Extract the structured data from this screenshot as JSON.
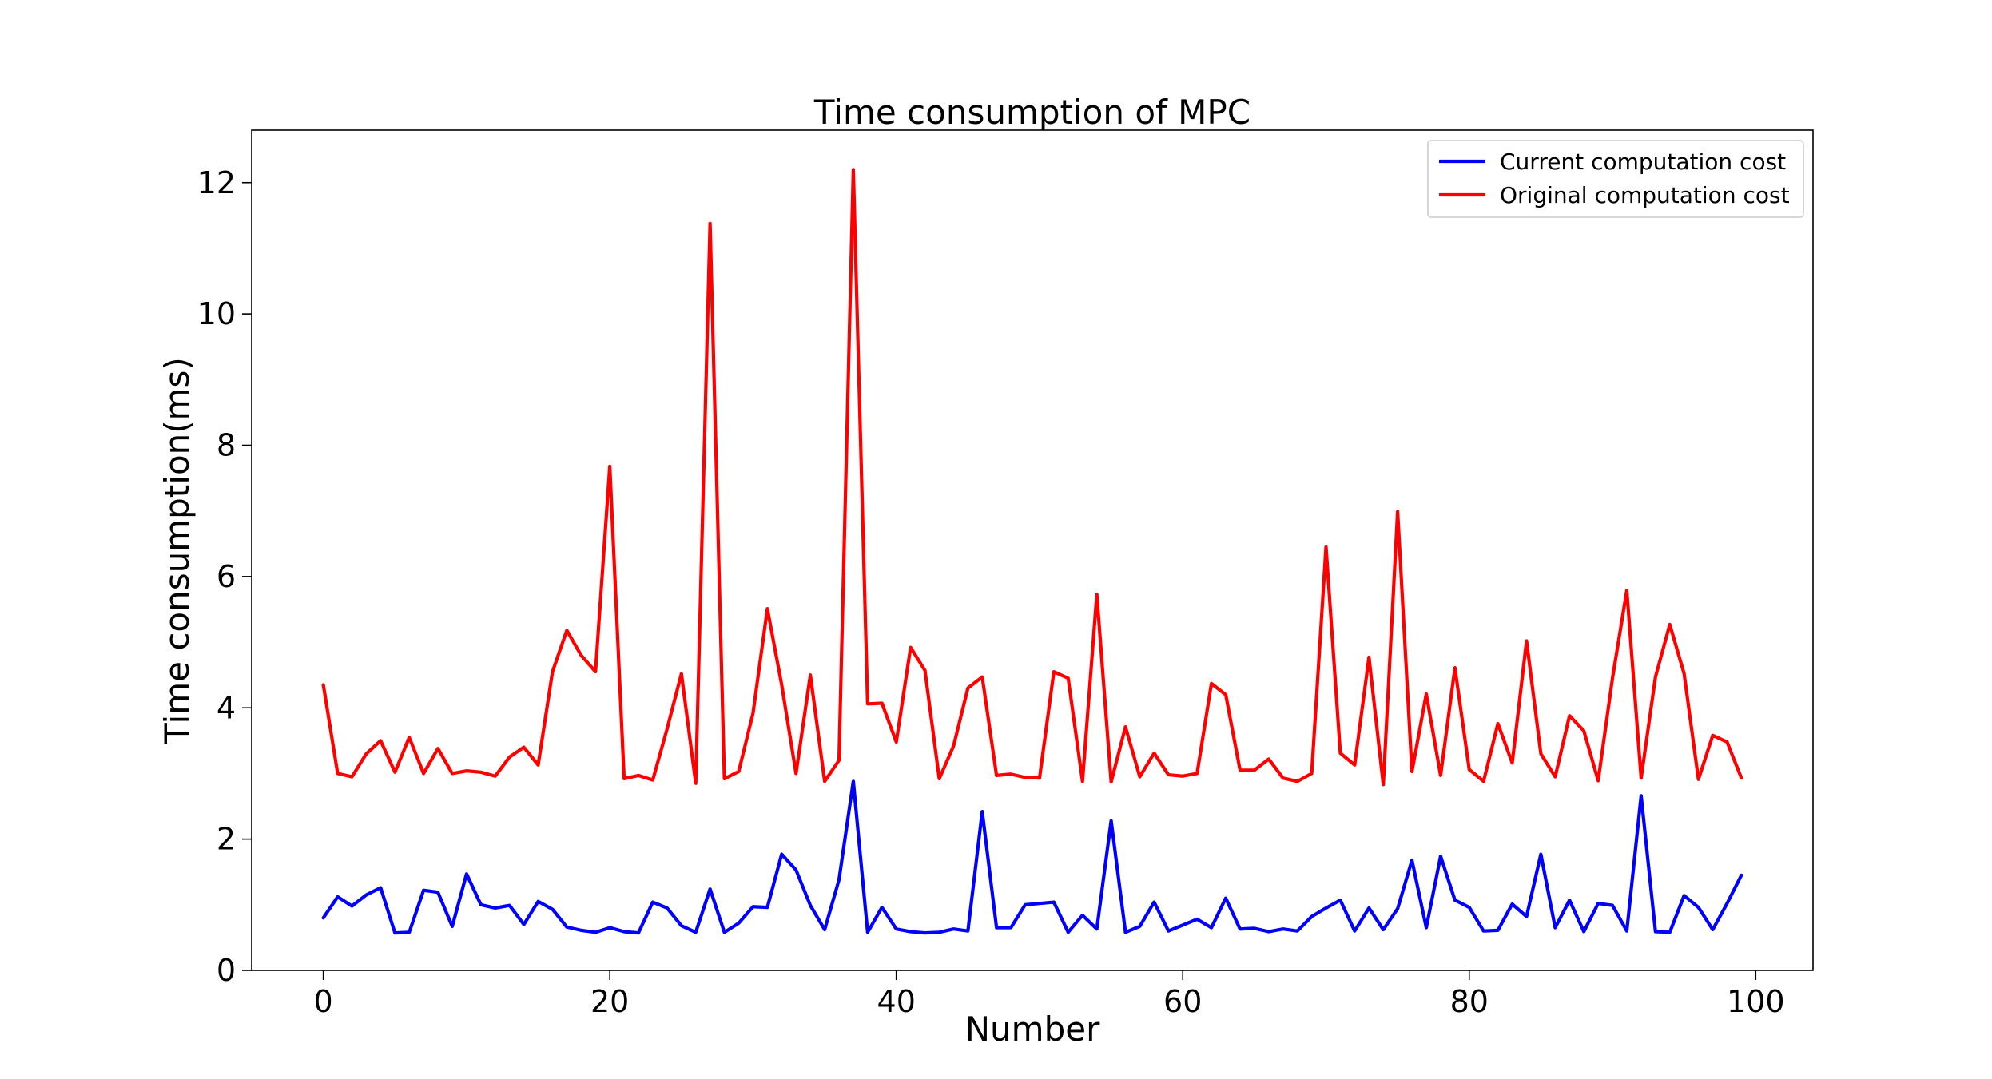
{
  "chart_data": {
    "type": "line",
    "title": "Time consumption of MPC",
    "xlabel": "Number",
    "ylabel": "Time consumption(ms)",
    "xlim": [
      -5,
      104
    ],
    "ylim": [
      0,
      12.8
    ],
    "xticks": [
      0,
      20,
      40,
      60,
      80,
      100
    ],
    "yticks": [
      0,
      2,
      4,
      6,
      8,
      10,
      12
    ],
    "grid": false,
    "legend_position": "top-right",
    "series": [
      {
        "name": "Current computation cost",
        "color": "#0000ff",
        "values": [
          0.8,
          1.12,
          0.98,
          1.15,
          1.26,
          0.57,
          0.58,
          1.22,
          1.19,
          0.67,
          1.47,
          1.0,
          0.95,
          0.99,
          0.7,
          1.05,
          0.93,
          0.66,
          0.61,
          0.58,
          0.65,
          0.59,
          0.57,
          1.04,
          0.95,
          0.68,
          0.58,
          1.24,
          0.58,
          0.72,
          0.97,
          0.96,
          1.77,
          1.53,
          0.99,
          0.62,
          1.38,
          2.88,
          0.58,
          0.96,
          0.63,
          0.59,
          0.57,
          0.58,
          0.63,
          0.6,
          2.42,
          0.65,
          0.65,
          1.0,
          1.02,
          1.04,
          0.58,
          0.84,
          0.63,
          2.28,
          0.58,
          0.67,
          1.04,
          0.6,
          0.69,
          0.78,
          0.65,
          1.1,
          0.63,
          0.64,
          0.59,
          0.63,
          0.6,
          0.82,
          0.95,
          1.07,
          0.6,
          0.95,
          0.62,
          0.94,
          1.68,
          0.65,
          1.74,
          1.07,
          0.96,
          0.6,
          0.61,
          1.01,
          0.82,
          1.77,
          0.65,
          1.07,
          0.59,
          1.02,
          0.99,
          0.6,
          2.66,
          0.59,
          0.58,
          1.14,
          0.96,
          0.62,
          1.02,
          1.45
        ]
      },
      {
        "name": "Original computation cost",
        "color": "#ff0000",
        "values": [
          4.35,
          3.0,
          2.95,
          3.3,
          3.5,
          3.02,
          3.55,
          3.0,
          3.38,
          3.0,
          3.04,
          3.02,
          2.96,
          3.25,
          3.4,
          3.13,
          4.55,
          5.18,
          4.8,
          4.55,
          7.68,
          2.92,
          2.97,
          2.9,
          3.68,
          4.52,
          2.85,
          11.38,
          2.92,
          3.03,
          3.92,
          5.51,
          4.35,
          3.0,
          4.5,
          2.88,
          3.2,
          12.2,
          4.06,
          4.07,
          3.48,
          4.92,
          4.57,
          2.92,
          3.42,
          4.3,
          4.47,
          2.97,
          2.99,
          2.94,
          2.93,
          4.55,
          4.45,
          2.88,
          5.73,
          2.87,
          3.71,
          2.95,
          3.31,
          2.98,
          2.96,
          3.0,
          4.37,
          4.2,
          3.05,
          3.05,
          3.22,
          2.93,
          2.88,
          3.0,
          6.45,
          3.31,
          3.13,
          4.77,
          2.83,
          6.99,
          3.03,
          4.21,
          2.97,
          4.61,
          3.06,
          2.88,
          3.76,
          3.16,
          5.02,
          3.3,
          2.95,
          3.88,
          3.65,
          2.89,
          4.45,
          5.79,
          2.93,
          4.47,
          5.27,
          4.52,
          2.91,
          3.58,
          3.48,
          2.93
        ]
      }
    ]
  }
}
